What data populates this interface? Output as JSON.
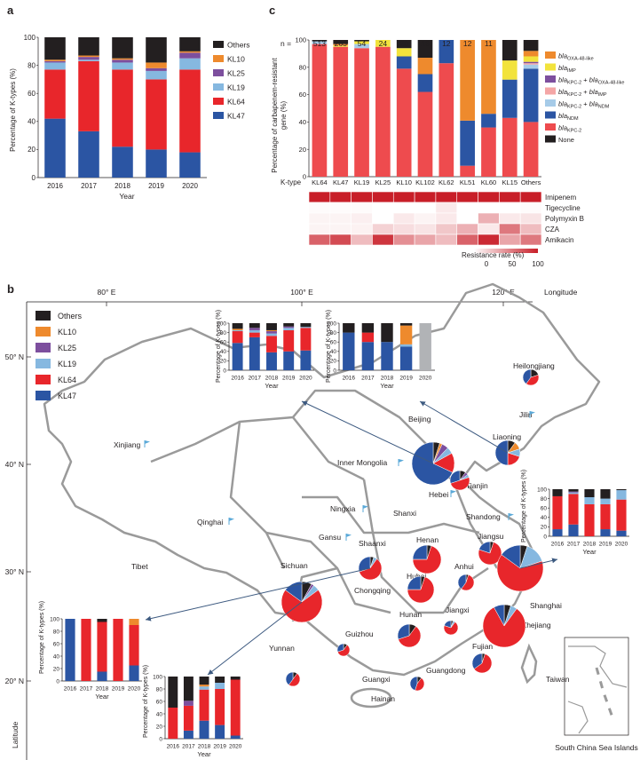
{
  "panels": {
    "a": "a",
    "b": "b",
    "c": "c"
  },
  "colors": {
    "Others": "#231f20",
    "KL10": "#ee8a2d",
    "KL25": "#7d4f9e",
    "KL19": "#86b8e0",
    "KL64": "#e8262b",
    "KL47": "#2b55a3"
  },
  "panel_a": {
    "ylabel": "Percentage of K-types (%)",
    "xlabel": "Year",
    "yticks": [
      "0",
      "20",
      "40",
      "60",
      "80",
      "100"
    ],
    "legend": [
      "Others",
      "KL10",
      "KL25",
      "KL19",
      "KL64",
      "KL47"
    ]
  },
  "panel_c": {
    "n_prefix": "n =",
    "ylabel_line1": "Percentage of carbapenem-resistant",
    "ylabel_line2": "gene (%)",
    "yticks": [
      "0",
      "20",
      "40",
      "60",
      "80",
      "100"
    ],
    "ktype_label": "K-type",
    "legend": [
      {
        "name": "bla OXA-48-like",
        "color": "#ee8a2d"
      },
      {
        "name": "bla IMP",
        "color": "#f2e33c"
      },
      {
        "name": "bla KPC-2 + bla OXA-48-like",
        "color": "#7d4f9e"
      },
      {
        "name": "bla KPC-2 + bla IMP",
        "color": "#f4a6a6"
      },
      {
        "name": "bla KPC-2 + bla NDM",
        "color": "#a6cbe8"
      },
      {
        "name": "bla NDM",
        "color": "#2b55a3"
      },
      {
        "name": "bla KPC-2",
        "color": "#ee4b4e"
      },
      {
        "name": "None",
        "color": "#231f20"
      }
    ],
    "heatmap_rows": [
      "Imipenem",
      "Tigecycline",
      "Polymyxin B",
      "CZA",
      "Amikacin"
    ],
    "heatmap_values": [
      [
        1.0,
        1.0,
        1.0,
        1.0,
        1.0,
        1.0,
        1.0,
        1.0,
        1.0,
        1.0,
        1.0
      ],
      [
        0.02,
        0.02,
        0.02,
        0.0,
        0.0,
        0.0,
        0.1,
        0.0,
        0.0,
        0.0,
        0.02
      ],
      [
        0.05,
        0.05,
        0.07,
        0.0,
        0.1,
        0.05,
        0.1,
        0.0,
        0.35,
        0.1,
        0.12
      ],
      [
        0.05,
        0.05,
        0.06,
        0.2,
        0.15,
        0.12,
        0.25,
        0.35,
        0.1,
        0.6,
        0.3
      ],
      [
        0.7,
        0.8,
        0.3,
        0.9,
        0.5,
        0.4,
        0.3,
        0.7,
        0.95,
        0.4,
        0.6
      ]
    ],
    "colorbar_label": "Resistance rate (%)",
    "colorbar_ticks": [
      "0",
      "50",
      "100"
    ]
  },
  "panel_b": {
    "lon_labels": [
      "80° E",
      "100° E",
      "120° E"
    ],
    "lon_title": "Longitude",
    "lat_labels": [
      "50° N",
      "40° N",
      "30° N",
      "20° N"
    ],
    "lat_title": "Latitude",
    "legend": [
      "Others",
      "KL10",
      "KL25",
      "KL19",
      "KL64",
      "KL47"
    ],
    "provinces": [
      {
        "name": "Heilongjiang",
        "pie": [
          0.2,
          0,
          0,
          0,
          0.4,
          0.4
        ],
        "r": 9
      },
      {
        "name": "Jilin",
        "pie": null
      },
      {
        "name": "Liaoning",
        "pie": [
          0.1,
          0.1,
          0,
          0.1,
          0.2,
          0.5
        ],
        "r": 14
      },
      {
        "name": "Beijing",
        "pie": [
          0.05,
          0.02,
          0.05,
          0.05,
          0.15,
          0.68
        ],
        "r": 24
      },
      {
        "name": "Tianjin",
        "pie": [
          0.1,
          0,
          0.05,
          0.05,
          0.5,
          0.3
        ],
        "r": 11
      },
      {
        "name": "Hebei",
        "pie": null
      },
      {
        "name": "Inner Mongolia",
        "pie": null
      },
      {
        "name": "Xinjiang",
        "pie": null
      },
      {
        "name": "Qinghai",
        "pie": null
      },
      {
        "name": "Tibet",
        "pie": null
      },
      {
        "name": "Ningxia",
        "pie": null
      },
      {
        "name": "Gansu",
        "pie": null
      },
      {
        "name": "Shanxi",
        "pie": null
      },
      {
        "name": "Shandong",
        "pie": null
      },
      {
        "name": "Shaanxi",
        "pie": [
          0.05,
          0,
          0,
          0.05,
          0.6,
          0.3
        ],
        "r": 13
      },
      {
        "name": "Henan",
        "pie": [
          0.05,
          0,
          0,
          0,
          0.7,
          0.25
        ],
        "r": 16
      },
      {
        "name": "Jiangsu",
        "pie": [
          0.05,
          0,
          0,
          0,
          0.75,
          0.2
        ],
        "r": 13
      },
      {
        "name": "Anhui",
        "pie": [
          0.05,
          0,
          0,
          0,
          0.55,
          0.4
        ],
        "r": 9
      },
      {
        "name": "Shanghai",
        "pie": [
          0.05,
          0,
          0,
          0.15,
          0.65,
          0.15
        ],
        "r": 26
      },
      {
        "name": "Hubei",
        "pie": [
          0.05,
          0,
          0,
          0,
          0.7,
          0.25
        ],
        "r": 15
      },
      {
        "name": "Chongqing",
        "pie": null
      },
      {
        "name": "Sichuan",
        "pie": [
          0.08,
          0,
          0.02,
          0.05,
          0.7,
          0.15
        ],
        "r": 23
      },
      {
        "name": "Jiangxi",
        "pie": [
          0.05,
          0,
          0,
          0.05,
          0.7,
          0.2
        ],
        "r": 8
      },
      {
        "name": "Zhejiang",
        "pie": [
          0.05,
          0,
          0,
          0.05,
          0.82,
          0.08
        ],
        "r": 24
      },
      {
        "name": "Hunan",
        "pie": [
          0.1,
          0,
          0,
          0,
          0.6,
          0.3
        ],
        "r": 13
      },
      {
        "name": "Guizhou",
        "pie": [
          0.1,
          0,
          0,
          0,
          0.6,
          0.3
        ],
        "r": 7
      },
      {
        "name": "Fujian",
        "pie": [
          0.05,
          0,
          0,
          0,
          0.6,
          0.35
        ],
        "r": 11
      },
      {
        "name": "Yunnan",
        "pie": [
          0.1,
          0,
          0,
          0,
          0.5,
          0.4
        ],
        "r": 8
      },
      {
        "name": "Guangxi",
        "pie": null
      },
      {
        "name": "Guangdong",
        "pie": [
          0.1,
          0,
          0,
          0,
          0.45,
          0.45
        ],
        "r": 8
      },
      {
        "name": "Taiwan",
        "pie": null
      },
      {
        "name": "Hainan",
        "pie": null
      }
    ],
    "inset_ylabel": "Percentage of K-types (%)",
    "inset_ylabel_alt": "Percentage of K-types (%)",
    "inset_xlabel": "Year",
    "inset_yticks": [
      "0",
      "20",
      "40",
      "60",
      "80",
      "100"
    ],
    "south_china_sea": "South China Sea Islands"
  },
  "chart_data": [
    {
      "type": "bar",
      "stacked": true,
      "panel": "a",
      "categories": [
        "2016",
        "2017",
        "2018",
        "2019",
        "2020"
      ],
      "series": [
        {
          "name": "KL47",
          "values": [
            42,
            33,
            22,
            20,
            18
          ]
        },
        {
          "name": "KL64",
          "values": [
            35,
            50,
            55,
            50,
            59
          ]
        },
        {
          "name": "KL19",
          "values": [
            5,
            1,
            5,
            6,
            8
          ]
        },
        {
          "name": "KL25",
          "values": [
            1,
            2,
            2,
            2,
            4
          ]
        },
        {
          "name": "KL10",
          "values": [
            1,
            1,
            1,
            4,
            1
          ]
        },
        {
          "name": "Others",
          "values": [
            16,
            13,
            15,
            18,
            10
          ]
        }
      ],
      "ylabel": "Percentage of K-types (%)",
      "xlabel": "Year",
      "ylim": [
        0,
        100
      ]
    },
    {
      "type": "bar",
      "stacked": true,
      "panel": "c",
      "categories": [
        "KL64",
        "KL47",
        "KL19",
        "KL25",
        "KL10",
        "KL102",
        "KL62",
        "KL51",
        "KL60",
        "KL15",
        "Others"
      ],
      "n": [
        "513",
        "263",
        "54",
        "24",
        "20",
        "16",
        "12",
        "12",
        "11",
        "7",
        "85"
      ],
      "series": [
        {
          "name": "bla KPC-2",
          "values": [
            97,
            95,
            94,
            95,
            79,
            62,
            83,
            8,
            36,
            43,
            40
          ]
        },
        {
          "name": "bla NDM",
          "values": [
            0,
            0,
            0,
            0,
            9,
            13,
            17,
            33,
            10,
            28,
            39
          ]
        },
        {
          "name": "bla KPC-2 + bla NDM",
          "values": [
            2,
            0,
            3,
            0,
            0,
            0,
            0,
            0,
            0,
            0,
            3
          ]
        },
        {
          "name": "bla KPC-2 + bla IMP",
          "values": [
            0,
            0,
            0,
            0,
            0,
            0,
            0,
            0,
            0,
            0,
            1
          ]
        },
        {
          "name": "bla KPC-2 + bla OXA-48-like",
          "values": [
            0,
            0,
            0,
            0,
            0,
            0,
            0,
            0,
            0,
            0,
            1
          ]
        },
        {
          "name": "bla IMP",
          "values": [
            0,
            1,
            2,
            5,
            6,
            0,
            0,
            0,
            0,
            14,
            4
          ]
        },
        {
          "name": "bla OXA-48-like",
          "values": [
            0,
            1,
            0,
            0,
            0,
            12,
            0,
            59,
            54,
            0,
            4
          ]
        },
        {
          "name": "None",
          "values": [
            1,
            3,
            1,
            0,
            6,
            13,
            0,
            0,
            0,
            15,
            8
          ]
        }
      ],
      "ylabel": "Percentage of carbapenem-resistant gene (%)",
      "ylim": [
        0,
        100
      ]
    },
    {
      "type": "bar",
      "stacked": true,
      "panel": "b-inset-beijing",
      "categories": [
        "2016",
        "2017",
        "2018",
        "2019",
        "2020"
      ],
      "series": [
        {
          "name": "KL47",
          "values": [
            58,
            70,
            38,
            40,
            42
          ]
        },
        {
          "name": "KL64",
          "values": [
            25,
            10,
            35,
            45,
            48
          ]
        },
        {
          "name": "KL19",
          "values": [
            2,
            5,
            5,
            5,
            2
          ]
        },
        {
          "name": "KL25",
          "values": [
            0,
            5,
            5,
            3,
            0
          ]
        },
        {
          "name": "KL10",
          "values": [
            3,
            0,
            2,
            0,
            0
          ]
        },
        {
          "name": "Others",
          "values": [
            12,
            10,
            15,
            7,
            8
          ]
        }
      ],
      "ylim": [
        0,
        100
      ]
    },
    {
      "type": "bar",
      "stacked": true,
      "panel": "b-inset-liaoning",
      "categories": [
        "2016",
        "2017",
        "2018",
        "2019",
        "2020"
      ],
      "series": [
        {
          "name": "KL47",
          "values": [
            80,
            60,
            60,
            50,
            0
          ]
        },
        {
          "name": "KL64",
          "values": [
            0,
            20,
            0,
            0,
            0
          ]
        },
        {
          "name": "KL19",
          "values": [
            0,
            0,
            0,
            5,
            0
          ]
        },
        {
          "name": "KL10",
          "values": [
            0,
            0,
            0,
            40,
            0
          ]
        },
        {
          "name": "Others",
          "values": [
            20,
            20,
            40,
            5,
            0
          ]
        },
        {
          "name": "No data",
          "values": [
            0,
            0,
            0,
            0,
            100
          ]
        }
      ],
      "ylim": [
        0,
        100
      ]
    },
    {
      "type": "bar",
      "stacked": true,
      "panel": "b-inset-shanghai",
      "categories": [
        "2016",
        "2017",
        "2018",
        "2019",
        "2020"
      ],
      "series": [
        {
          "name": "KL47",
          "values": [
            15,
            25,
            0,
            15,
            12
          ]
        },
        {
          "name": "KL64",
          "values": [
            70,
            65,
            68,
            53,
            66
          ]
        },
        {
          "name": "KL19",
          "values": [
            0,
            3,
            15,
            12,
            20
          ]
        },
        {
          "name": "KL25",
          "values": [
            0,
            2,
            0,
            0,
            0
          ]
        },
        {
          "name": "Others",
          "values": [
            15,
            5,
            17,
            20,
            2
          ]
        }
      ],
      "ylim": [
        0,
        100
      ]
    },
    {
      "type": "bar",
      "stacked": true,
      "panel": "b-inset-shaanxi",
      "categories": [
        "2016",
        "2017",
        "2018",
        "2019",
        "2020"
      ],
      "series": [
        {
          "name": "KL47",
          "values": [
            100,
            0,
            15,
            0,
            25
          ]
        },
        {
          "name": "KL64",
          "values": [
            0,
            100,
            80,
            100,
            65
          ]
        },
        {
          "name": "KL10",
          "values": [
            0,
            0,
            0,
            0,
            10
          ]
        },
        {
          "name": "Others",
          "values": [
            0,
            0,
            5,
            0,
            0
          ]
        }
      ],
      "ylim": [
        0,
        100
      ]
    },
    {
      "type": "bar",
      "stacked": true,
      "panel": "b-inset-sichuan",
      "categories": [
        "2016",
        "2017",
        "2018",
        "2019",
        "2020"
      ],
      "series": [
        {
          "name": "KL47",
          "values": [
            0,
            13,
            29,
            22,
            5
          ]
        },
        {
          "name": "KL64",
          "values": [
            50,
            40,
            50,
            58,
            90
          ]
        },
        {
          "name": "KL19",
          "values": [
            0,
            0,
            5,
            10,
            0
          ]
        },
        {
          "name": "KL25",
          "values": [
            0,
            8,
            0,
            0,
            0
          ]
        },
        {
          "name": "KL10",
          "values": [
            0,
            0,
            3,
            0,
            0
          ]
        },
        {
          "name": "Others",
          "values": [
            50,
            39,
            13,
            10,
            5
          ]
        }
      ],
      "ylim": [
        0,
        100
      ]
    }
  ]
}
